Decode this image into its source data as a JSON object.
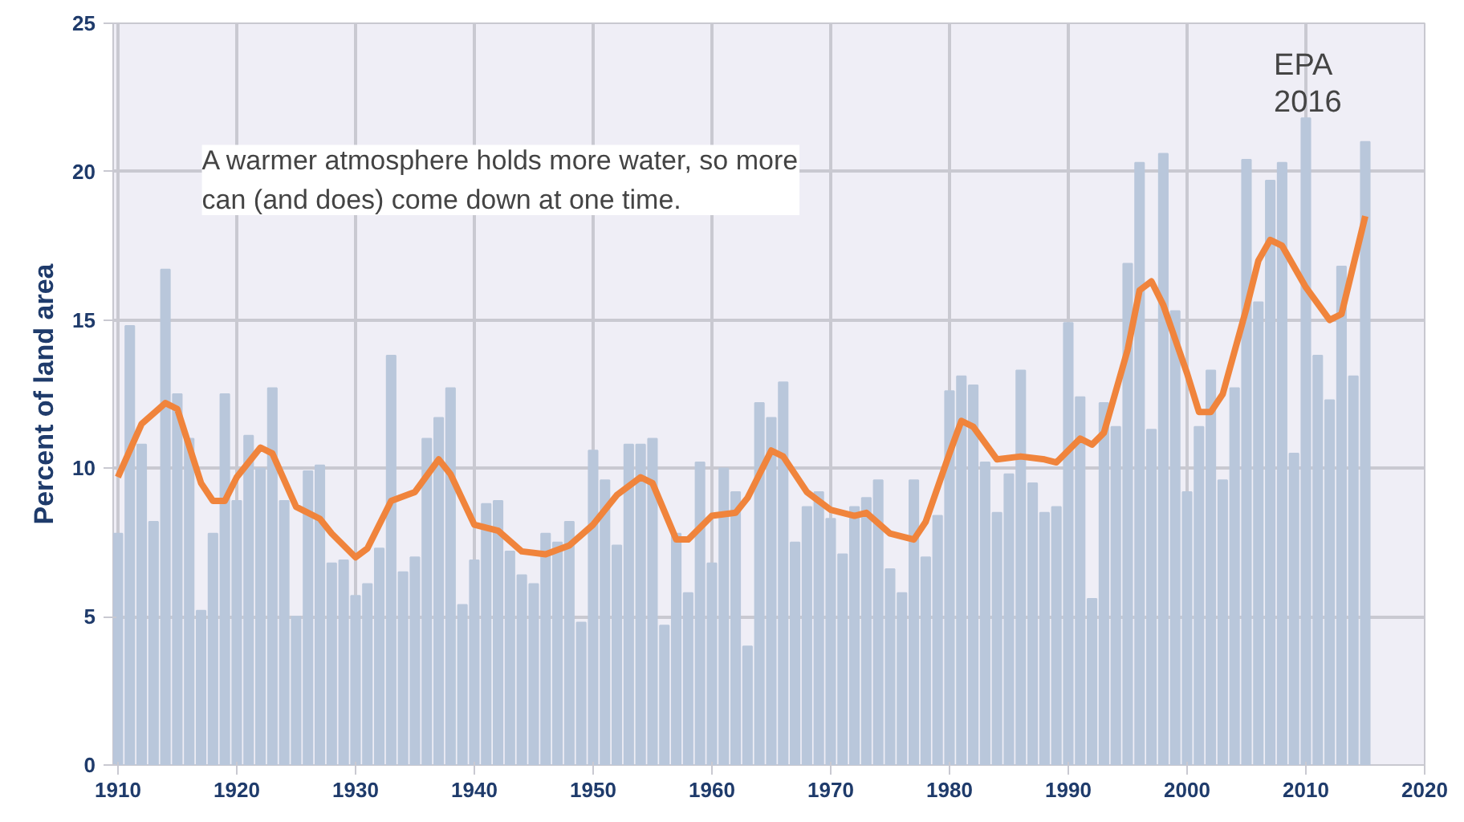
{
  "chart_data": {
    "type": "bar",
    "ylabel": "Percent of land area",
    "x": [
      1910,
      1911,
      1912,
      1913,
      1914,
      1915,
      1916,
      1917,
      1918,
      1919,
      1920,
      1921,
      1922,
      1923,
      1924,
      1925,
      1926,
      1927,
      1928,
      1929,
      1930,
      1931,
      1932,
      1933,
      1934,
      1935,
      1936,
      1937,
      1938,
      1939,
      1940,
      1941,
      1942,
      1943,
      1944,
      1945,
      1946,
      1947,
      1948,
      1949,
      1950,
      1951,
      1952,
      1953,
      1954,
      1955,
      1956,
      1957,
      1958,
      1959,
      1960,
      1961,
      1962,
      1963,
      1964,
      1965,
      1966,
      1967,
      1968,
      1969,
      1970,
      1971,
      1972,
      1973,
      1974,
      1975,
      1976,
      1977,
      1978,
      1979,
      1980,
      1981,
      1982,
      1983,
      1984,
      1985,
      1986,
      1987,
      1988,
      1989,
      1990,
      1991,
      1992,
      1993,
      1994,
      1995,
      1996,
      1997,
      1998,
      1999,
      2000,
      2001,
      2002,
      2003,
      2004,
      2005,
      2006,
      2007,
      2008,
      2009,
      2010,
      2011,
      2012,
      2013,
      2014,
      2015
    ],
    "series": [
      {
        "color": "#b9c7db",
        "values": [
          7.8,
          14.8,
          10.8,
          8.2,
          16.7,
          12.5,
          11.0,
          5.2,
          7.8,
          12.5,
          8.9,
          11.1,
          10.0,
          12.7,
          8.9,
          5.0,
          9.9,
          10.1,
          6.8,
          6.9,
          5.7,
          6.1,
          7.3,
          13.8,
          6.5,
          7.0,
          11.0,
          11.7,
          12.7,
          5.4,
          6.9,
          8.8,
          8.9,
          7.2,
          6.4,
          6.1,
          7.8,
          7.5,
          8.2,
          4.8,
          10.6,
          9.6,
          7.4,
          10.8,
          10.8,
          11.0,
          4.7,
          7.8,
          5.8,
          10.2,
          6.8,
          10.0,
          9.2,
          4.0,
          12.2,
          11.7,
          12.9,
          7.5,
          8.7,
          9.2,
          8.3,
          7.1,
          8.7,
          9.0,
          9.6,
          6.6,
          5.8,
          9.6,
          7.0,
          8.4,
          12.6,
          13.1,
          12.8,
          10.2,
          8.5,
          9.8,
          13.3,
          9.5,
          8.5,
          8.7,
          14.9,
          12.4,
          5.6,
          12.2,
          11.4,
          16.9,
          20.3,
          11.3,
          20.6,
          15.3,
          9.2,
          11.4,
          13.3,
          9.6,
          12.7,
          20.4,
          15.6,
          19.7,
          20.3,
          10.5,
          21.8,
          13.8,
          12.3,
          16.8,
          13.1,
          21.0
        ]
      },
      {
        "type": "line",
        "color": "#f0843c",
        "x": [
          1910,
          1912,
          1914,
          1915,
          1917,
          1918,
          1919,
          1920,
          1922,
          1923,
          1925,
          1927,
          1928,
          1930,
          1931,
          1933,
          1935,
          1937,
          1938,
          1940,
          1942,
          1944,
          1946,
          1948,
          1950,
          1952,
          1954,
          1955,
          1957,
          1958,
          1960,
          1962,
          1963,
          1965,
          1966,
          1968,
          1970,
          1972,
          1973,
          1975,
          1977,
          1978,
          1980,
          1981,
          1982,
          1984,
          1986,
          1988,
          1989,
          1991,
          1992,
          1993,
          1995,
          1996,
          1997,
          1998,
          2000,
          2001,
          2002,
          2003,
          2005,
          2006,
          2007,
          2008,
          2010,
          2012,
          2013,
          2015
        ],
        "values": [
          9.7,
          11.5,
          12.2,
          12.0,
          9.5,
          8.9,
          8.9,
          9.7,
          10.7,
          10.5,
          8.7,
          8.3,
          7.8,
          7.0,
          7.3,
          8.9,
          9.2,
          10.3,
          9.8,
          8.1,
          7.9,
          7.2,
          7.1,
          7.4,
          8.1,
          9.1,
          9.7,
          9.5,
          7.6,
          7.6,
          8.4,
          8.5,
          9.0,
          10.6,
          10.4,
          9.2,
          8.6,
          8.4,
          8.5,
          7.8,
          7.6,
          8.2,
          10.5,
          11.6,
          11.4,
          10.3,
          10.4,
          10.3,
          10.2,
          11.0,
          10.8,
          11.2,
          14.0,
          16.0,
          16.3,
          15.5,
          13.2,
          11.9,
          11.9,
          12.5,
          15.4,
          17.0,
          17.7,
          17.5,
          16.1,
          15.0,
          15.2,
          18.5
        ]
      }
    ],
    "xlim": [
      1909.6,
      2020
    ],
    "xticks": [
      1910,
      1920,
      1930,
      1940,
      1950,
      1960,
      1970,
      1980,
      1990,
      2000,
      2010,
      2020
    ],
    "ylim": [
      0,
      25
    ],
    "yticks": [
      0,
      5,
      10,
      15,
      20,
      25
    ],
    "grid": true,
    "annotations": [
      "A warmer atmosphere holds more water, so more\ncan (and does) come down at one time.",
      "EPA\n2016"
    ]
  }
}
